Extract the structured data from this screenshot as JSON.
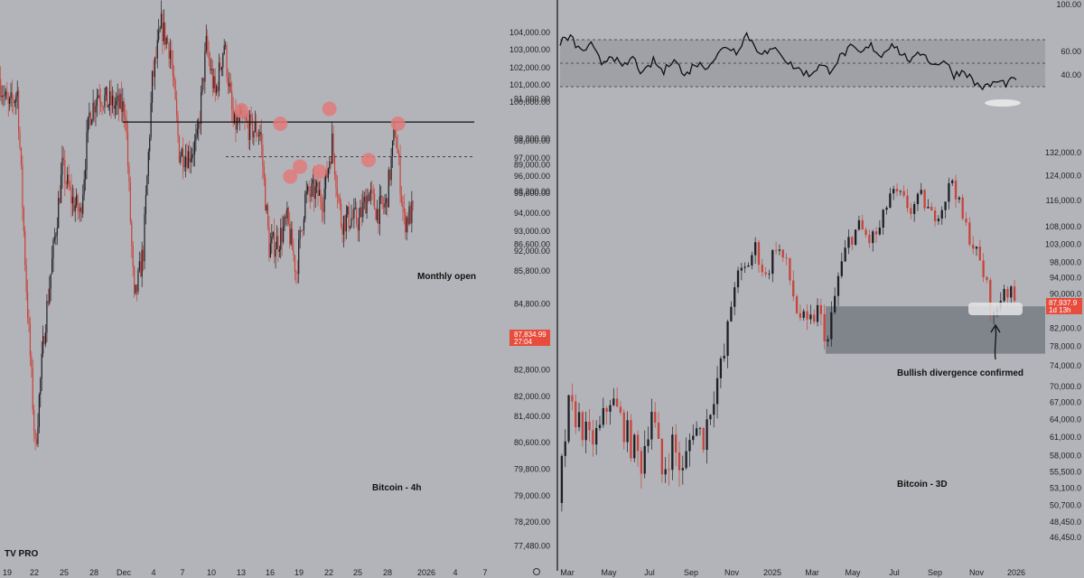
{
  "colors": {
    "background": "#b2b4b9",
    "up": "#1e1f24",
    "down": "#c9433a",
    "price_tag": "#e74c3c",
    "zone": "#6b6f78",
    "marker": "#e07a7a",
    "line": "#111111"
  },
  "logo": "TV PRO",
  "chart_data": [
    {
      "name": "left",
      "type": "candlestick",
      "title": "Bitcoin - 4h",
      "timeframe": "4h",
      "x_labels": [
        "19",
        "22",
        "25",
        "28",
        "Dec",
        "4",
        "7",
        "10",
        "13",
        "16",
        "19",
        "22",
        "25",
        "28",
        "2026",
        "4",
        "7"
      ],
      "y_ticks": [
        "91,000.00",
        "89,800.00",
        "89,000.00",
        "88,200.00",
        "86,600.00",
        "85,800.00",
        "84,800.00",
        "83,800.00",
        "82,800.00",
        "82,000.00",
        "81,400.00",
        "80,600.00",
        "79,800.00",
        "79,000.00",
        "78,200.00",
        "77,480.00"
      ],
      "y_range": [
        77000,
        93500
      ],
      "current_price": "87,834.99",
      "countdown": "27:04",
      "monthly_open": {
        "label": "Monthly open",
        "value": 90300
      },
      "dashed_level": 89250,
      "markers": [
        {
          "x": "13",
          "y": 90650
        },
        {
          "x": "17",
          "y": 90250
        },
        {
          "x": "18",
          "y": 88650
        },
        {
          "x": "19",
          "y": 88950
        },
        {
          "x": "21",
          "y": 88800
        },
        {
          "x": "22",
          "y": 90700
        },
        {
          "x": "26",
          "y": 89150
        },
        {
          "x": "29",
          "y": 90250
        }
      ],
      "path": [
        [
          "Nov 18",
          91600
        ],
        [
          "Nov 19",
          90700
        ],
        [
          "Nov 20",
          91200
        ],
        [
          "Nov 21",
          85300
        ],
        [
          "Nov 21b",
          80400
        ],
        [
          "Nov 22",
          84000
        ],
        [
          "Nov 23",
          86400
        ],
        [
          "Nov 24",
          88900
        ],
        [
          "Nov 25",
          88000
        ],
        [
          "Nov 26",
          87500
        ],
        [
          "Nov 27",
          90500
        ],
        [
          "Nov 28",
          91200
        ],
        [
          "Nov 29",
          90900
        ],
        [
          "Nov 30",
          90800
        ],
        [
          "Dec 1",
          90700
        ],
        [
          "Dec 1b",
          84800
        ],
        [
          "Dec 2",
          86400
        ],
        [
          "Dec 2b",
          91500
        ],
        [
          "Dec 3",
          93200
        ],
        [
          "Dec 4",
          92500
        ],
        [
          "Dec 5",
          89400
        ],
        [
          "Dec 6",
          89300
        ],
        [
          "Dec 7",
          89700
        ],
        [
          "Dec 8",
          92600
        ],
        [
          "Dec 9",
          91100
        ],
        [
          "Dec 10",
          92700
        ],
        [
          "Dec 11",
          90200
        ],
        [
          "Dec 12",
          90300
        ],
        [
          "Dec 13",
          90100
        ],
        [
          "Dec 14",
          90000
        ],
        [
          "Dec 15",
          86500
        ],
        [
          "Dec 16",
          86700
        ],
        [
          "Dec 17",
          87300
        ],
        [
          "Dec 18",
          85800
        ],
        [
          "Dec 19",
          88000
        ],
        [
          "Dec 20",
          88200
        ],
        [
          "Dec 21",
          88000
        ],
        [
          "Dec 22",
          89700
        ],
        [
          "Dec 23",
          87300
        ],
        [
          "Dec 24",
          87400
        ],
        [
          "Dec 25",
          87300
        ],
        [
          "Dec 26",
          88200
        ],
        [
          "Dec 27",
          87600
        ],
        [
          "Dec 28",
          87800
        ],
        [
          "Dec 29",
          90100
        ],
        [
          "Dec 29b",
          87300
        ],
        [
          "Dec 30",
          87600
        ]
      ]
    },
    {
      "name": "right",
      "type": "candlestick",
      "title": "Bitcoin - 3D",
      "timeframe": "3D",
      "annotation": "Bullish divergence confirmed",
      "x_labels": [
        "Mar",
        "May",
        "Jul",
        "Sep",
        "Nov",
        "2025",
        "Mar",
        "May",
        "Jul",
        "Sep",
        "Nov",
        "2026"
      ],
      "y_ticks": [
        "132,000.0",
        "124,000.0",
        "116,000.0",
        "108,000.0",
        "103,000.0",
        "98,000.0",
        "94,000.0",
        "90,000.0",
        "86,000.0",
        "82,000.0",
        "78,000.0",
        "74,000.0",
        "70,000.0",
        "67,000.0",
        "64,000.0",
        "61,000.0",
        "58,000.0",
        "55,500.0",
        "53,100.0",
        "50,700.0",
        "48,450.0",
        "46,450.0"
      ],
      "log_scale": true,
      "y_range": [
        45000,
        135000
      ],
      "current_price": "87,937.9",
      "countdown": "1d 13h",
      "support_zone": [
        76500,
        87000
      ],
      "path": [
        [
          "2024-03",
          51000
        ],
        [
          "2024-03b",
          66000
        ],
        [
          "2024-04",
          64000
        ],
        [
          "2024-04b",
          60000
        ],
        [
          "2024-05",
          62000
        ],
        [
          "2024-05b",
          68000
        ],
        [
          "2024-06",
          64000
        ],
        [
          "2024-06b",
          60000
        ],
        [
          "2024-07",
          57000
        ],
        [
          "2024-07b",
          66000
        ],
        [
          "2024-08",
          55000
        ],
        [
          "2024-08b",
          60000
        ],
        [
          "2024-09",
          55000
        ],
        [
          "2024-09b",
          63000
        ],
        [
          "2024-10",
          61000
        ],
        [
          "2024-10b",
          69000
        ],
        [
          "2024-11",
          76000
        ],
        [
          "2024-11b",
          93000
        ],
        [
          "2024-12",
          96000
        ],
        [
          "2024-12b",
          102000
        ],
        [
          "2025-01",
          94000
        ],
        [
          "2025-01b",
          103000
        ],
        [
          "2025-02",
          97000
        ],
        [
          "2025-02b",
          86000
        ],
        [
          "2025-03",
          82000
        ],
        [
          "2025-03b",
          86000
        ],
        [
          "2025-04",
          79000
        ],
        [
          "2025-04b",
          94000
        ],
        [
          "2025-05",
          104000
        ],
        [
          "2025-05b",
          108000
        ],
        [
          "2025-06",
          104000
        ],
        [
          "2025-06b",
          107000
        ],
        [
          "2025-07",
          118000
        ],
        [
          "2025-07b",
          117000
        ],
        [
          "2025-08",
          113000
        ],
        [
          "2025-08b",
          117000
        ],
        [
          "2025-09",
          111000
        ],
        [
          "2025-09b",
          114000
        ],
        [
          "2025-10",
          123000
        ],
        [
          "2025-10b",
          110000
        ],
        [
          "2025-11",
          103000
        ],
        [
          "2025-11b",
          95000
        ],
        [
          "2025-11c",
          84000
        ],
        [
          "2025-12",
          92000
        ],
        [
          "2025-12b",
          88000
        ]
      ]
    },
    {
      "name": "oscillator",
      "type": "line",
      "y_ticks": [
        "100.00",
        "60.00",
        "40.00"
      ],
      "y_range": [
        10,
        100
      ],
      "band": [
        30,
        70
      ],
      "midline": 50,
      "values": [
        68,
        72,
        60,
        65,
        50,
        58,
        45,
        55,
        40,
        52,
        42,
        56,
        38,
        50,
        47,
        55,
        65,
        60,
        75,
        62,
        58,
        63,
        50,
        45,
        40,
        48,
        44,
        55,
        63,
        58,
        65,
        56,
        68,
        57,
        52,
        60,
        48,
        53,
        40,
        44,
        33,
        29,
        34,
        33,
        36
      ]
    }
  ]
}
